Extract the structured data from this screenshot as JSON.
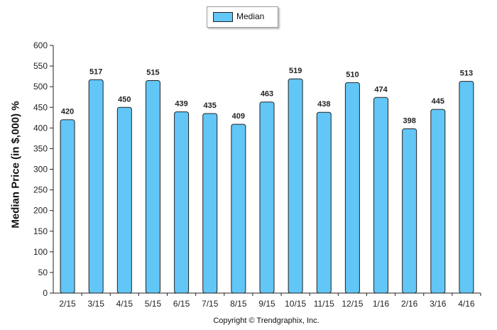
{
  "legend": {
    "label": "Median",
    "color": "#62c6f7"
  },
  "copyright": "Copyright © Trendgraphix, Inc.",
  "chart_data": {
    "type": "bar",
    "title": "",
    "xlabel": "",
    "ylabel": "Median Price (in $,000) %",
    "ylim": [
      0,
      600
    ],
    "yticks": [
      0,
      50,
      100,
      150,
      200,
      250,
      300,
      350,
      400,
      450,
      500,
      550,
      600
    ],
    "grid": false,
    "legend_position": "top-center",
    "categories": [
      "2/15",
      "3/15",
      "4/15",
      "5/15",
      "6/15",
      "7/15",
      "8/15",
      "9/15",
      "10/15",
      "11/15",
      "12/15",
      "1/16",
      "2/16",
      "3/16",
      "4/16"
    ],
    "series": [
      {
        "name": "Median",
        "color": "#62c6f7",
        "values": [
          420,
          517,
          450,
          515,
          439,
          435,
          409,
          463,
          519,
          438,
          510,
          474,
          398,
          445,
          513
        ]
      }
    ]
  }
}
